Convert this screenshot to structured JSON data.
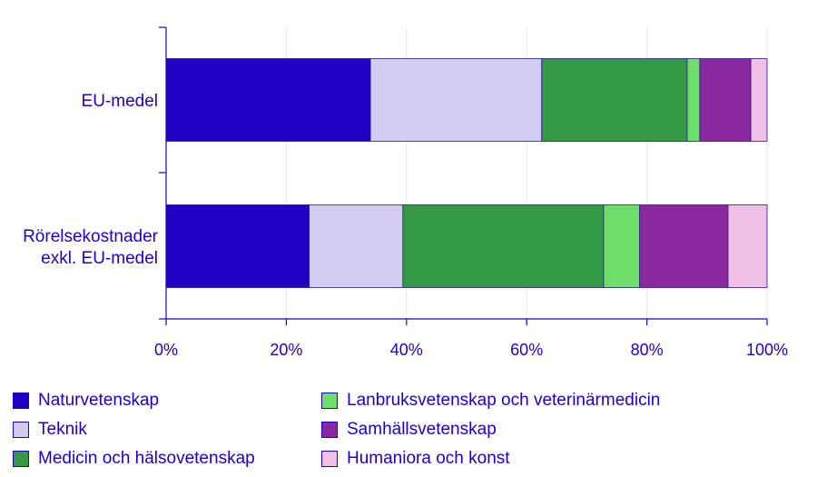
{
  "chart_data": {
    "type": "bar",
    "orientation": "horizontal",
    "stacked": true,
    "categories": [
      "EU-medel",
      "Rörelsekostnader exkl. EU-medel"
    ],
    "category_lines": [
      [
        "EU-medel"
      ],
      [
        "Rörelsekostnader",
        "exkl. EU-medel"
      ]
    ],
    "series": [
      {
        "name": "Naturvetenskap",
        "color": "#2200c4",
        "values": [
          34,
          23.8
        ]
      },
      {
        "name": "Teknik",
        "color": "#d2ccf2",
        "values": [
          28.5,
          15.6
        ]
      },
      {
        "name": "Medicin och hälsovetenskap",
        "color": "#339944",
        "values": [
          24.2,
          33.4
        ]
      },
      {
        "name": "Lanbruksvetenskap och veterinärmedicin",
        "color": "#6ede6a",
        "values": [
          2.1,
          6
        ]
      },
      {
        "name": "Samhällsvetenskap",
        "color": "#8b28a0",
        "values": [
          8.5,
          14.7
        ]
      },
      {
        "name": "Humaniora och konst",
        "color": "#f0c0e6",
        "values": [
          2.7,
          6.5
        ]
      }
    ],
    "xlim": [
      0,
      100
    ],
    "xticks": [
      "0%",
      "20%",
      "40%",
      "60%",
      "80%",
      "100%"
    ],
    "xtick_values": [
      0,
      20,
      40,
      60,
      80,
      100
    ],
    "axis_color": "#1f00c8",
    "grid": true,
    "legend_position": "bottom"
  }
}
